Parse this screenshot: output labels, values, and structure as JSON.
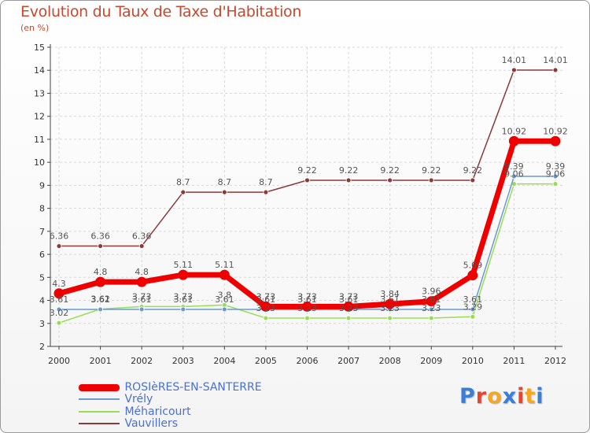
{
  "header": {
    "title": "Evolution du Taux de Taxe d'Habitation",
    "subtitle": "(en %)"
  },
  "logo": {
    "text": "Proxiti",
    "colors": [
      "#3a7fd6",
      "#e8462c",
      "#f5a623",
      "#3a7fd6",
      "#e8462c",
      "#f5a623",
      "#3a7fd6"
    ]
  },
  "chart_data": {
    "type": "line",
    "title": "Evolution du Taux de Taxe d'Habitation",
    "ylabel": "(en %)",
    "xlabel": "",
    "ylim": [
      2,
      15
    ],
    "grid": true,
    "x": [
      "2000",
      "2001",
      "2002",
      "2003",
      "2004",
      "2005",
      "2006",
      "2007",
      "2008",
      "2009",
      "2010",
      "2011",
      "2012"
    ],
    "y_ticks": [
      "2",
      "3",
      "4",
      "5",
      "6",
      "7",
      "8",
      "9",
      "10",
      "11",
      "12",
      "13",
      "14",
      "15"
    ],
    "series": [
      {
        "name": "Méharicourt",
        "color": "#99dd55",
        "width": 1.5,
        "values": [
          3.02,
          3.62,
          3.73,
          3.73,
          3.8,
          3.23,
          3.23,
          3.23,
          3.23,
          3.23,
          3.29,
          9.06,
          9.06
        ],
        "labels": [
          "3.02",
          "3.62",
          "3.73",
          "3.73",
          "3.8",
          "3.23",
          "3.23",
          "3.23",
          "3.23",
          "3.23",
          "3.29",
          "9.06",
          "9.06"
        ]
      },
      {
        "name": "Vrély",
        "color": "#6a9bd0",
        "width": 1.5,
        "values": [
          3.61,
          3.61,
          3.61,
          3.61,
          3.61,
          3.61,
          3.61,
          3.61,
          3.61,
          3.61,
          3.61,
          9.39,
          9.39
        ],
        "labels": [
          "3.61",
          "3.61",
          "3.61",
          "3.61",
          "3.61",
          "3.61",
          "3.61",
          "3.61",
          "3.61",
          "3.61",
          "3.61",
          "9.39",
          "9.39"
        ]
      },
      {
        "name": "Vauvillers",
        "color": "#8b3a3a",
        "width": 1.5,
        "values": [
          6.36,
          6.36,
          6.36,
          8.7,
          8.7,
          8.7,
          9.22,
          9.22,
          9.22,
          9.22,
          9.22,
          14.01,
          14.01
        ],
        "labels": [
          "6.36",
          "6.36",
          "6.36",
          "8.7",
          "8.7",
          "8.7",
          "9.22",
          "9.22",
          "9.22",
          "9.22",
          "9.22",
          "14.01",
          "14.01"
        ]
      },
      {
        "name": "ROSIèRES-EN-SANTERRE",
        "color": "#ee0000",
        "width": 7,
        "values": [
          4.3,
          4.8,
          4.8,
          5.11,
          5.11,
          3.73,
          3.73,
          3.73,
          3.84,
          3.96,
          5.09,
          10.92,
          10.92
        ],
        "labels": [
          "4.3",
          "4.8",
          "4.8",
          "5.11",
          "5.11",
          "3.73",
          "3.73",
          "3.73",
          "3.84",
          "3.96",
          "5.09",
          "10.92",
          "10.92"
        ]
      }
    ],
    "legend": [
      "ROSIèRES-EN-SANTERRE",
      "Vrély",
      "Méharicourt",
      "Vauvillers"
    ],
    "legend_position": "bottom-left"
  }
}
